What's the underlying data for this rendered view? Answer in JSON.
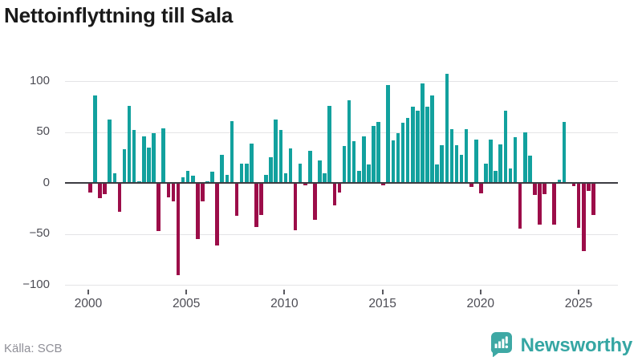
{
  "title": "Nettoinflyttning till Sala",
  "source": "Källa: SCB",
  "brand": {
    "name": "Newsworthy",
    "icon": "bar-chart-speech-bubble-icon"
  },
  "colors": {
    "positive": "#12a19e",
    "negative": "#9c0d49",
    "brand_teal": "#3ea8a4",
    "grid": "#e4e4e6",
    "zero_line": "#3c3c42",
    "axis_text": "#4c4c54",
    "source_text": "#8f8f97",
    "title_text": "#1a1a1a"
  },
  "chart_data": {
    "type": "bar",
    "title": "Nettoinflyttning till Sala",
    "period": "quarterly",
    "start": "2000-Q1",
    "end": "2025-Q4",
    "xlabel": "",
    "ylabel": "",
    "ylim": [
      -100,
      110
    ],
    "grid": true,
    "legend": "none",
    "y_ticks": [
      {
        "value": 100,
        "label": "100"
      },
      {
        "value": 50,
        "label": "50"
      },
      {
        "value": 0,
        "label": "0"
      },
      {
        "value": -50,
        "label": "−50"
      },
      {
        "value": -100,
        "label": "−100"
      }
    ],
    "x_ticks": [
      {
        "year": 2000,
        "label": "2000"
      },
      {
        "year": 2005,
        "label": "2005"
      },
      {
        "year": 2010,
        "label": "2010"
      },
      {
        "year": 2015,
        "label": "2015"
      },
      {
        "year": 2020,
        "label": "2020"
      },
      {
        "year": 2025,
        "label": "2025"
      }
    ],
    "series": [
      {
        "name": "Nettoinflyttning",
        "start_year": 2000,
        "start_quarter": 1,
        "values": [
          -9,
          86,
          -15,
          -11,
          62,
          10,
          -28,
          33,
          76,
          52,
          2,
          46,
          35,
          49,
          -47,
          54,
          -14,
          -18,
          -90,
          6,
          12,
          7,
          -55,
          -18,
          2,
          11,
          -61,
          28,
          8,
          61,
          -32,
          19,
          19,
          39,
          -43,
          -31,
          8,
          25,
          62,
          52,
          10,
          34,
          -46,
          19,
          -2,
          32,
          -36,
          22,
          10,
          76,
          -22,
          -9,
          36,
          81,
          41,
          12,
          46,
          18,
          56,
          60,
          -2,
          96,
          42,
          49,
          59,
          64,
          75,
          71,
          98,
          75,
          86,
          18,
          37,
          107,
          53,
          37,
          28,
          53,
          -4,
          43,
          -10,
          19,
          43,
          12,
          38,
          71,
          14,
          45,
          -45,
          50,
          27,
          -12,
          -41,
          -11,
          0,
          -41,
          3,
          60,
          1,
          -3,
          -44,
          -67,
          -8,
          -31
        ]
      }
    ]
  }
}
